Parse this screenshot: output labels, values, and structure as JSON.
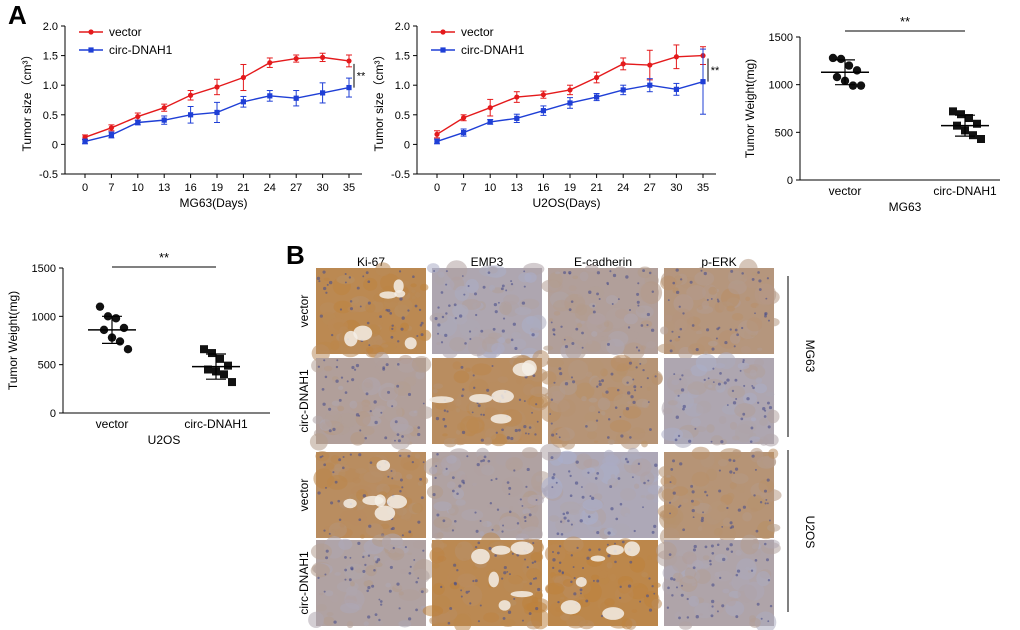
{
  "panel_labels": {
    "a": "A",
    "b": "B"
  },
  "colors": {
    "vector": "#e41a1c",
    "circ": "#1f3fd6",
    "dot": "#111111"
  },
  "chart_data": [
    {
      "id": "mg63_growth",
      "type": "line",
      "title": "",
      "xlabel": "MG63(Days)",
      "ylabel": "Tumor size（cm³）",
      "categories": [
        "0",
        "7",
        "10",
        "13",
        "16",
        "19",
        "21",
        "24",
        "27",
        "30",
        "35"
      ],
      "ylim": [
        -0.5,
        2.0
      ],
      "yticks": [
        "-0.5",
        "0",
        "0.5",
        "1.0",
        "1.5",
        "2.0"
      ],
      "legend_position": "top-left",
      "significance": "**",
      "series": [
        {
          "name": "vector",
          "color": "#e41a1c",
          "values": [
            0.12,
            0.28,
            0.47,
            0.62,
            0.83,
            0.97,
            1.13,
            1.38,
            1.45,
            1.47,
            1.41
          ],
          "errors": [
            0.04,
            0.05,
            0.06,
            0.06,
            0.08,
            0.13,
            0.22,
            0.08,
            0.06,
            0.07,
            0.1
          ]
        },
        {
          "name": "circ-DNAH1",
          "color": "#1f3fd6",
          "values": [
            0.05,
            0.16,
            0.37,
            0.41,
            0.5,
            0.54,
            0.72,
            0.82,
            0.78,
            0.87,
            0.96
          ],
          "errors": [
            0.04,
            0.05,
            0.04,
            0.07,
            0.14,
            0.17,
            0.09,
            0.09,
            0.13,
            0.17,
            0.16
          ]
        }
      ]
    },
    {
      "id": "u2os_growth",
      "type": "line",
      "title": "",
      "xlabel": "U2OS(Days)",
      "ylabel": "Tumor size（cm³）",
      "categories": [
        "0",
        "7",
        "10",
        "13",
        "16",
        "19",
        "21",
        "24",
        "27",
        "30",
        "35"
      ],
      "ylim": [
        -0.5,
        2.0
      ],
      "yticks": [
        "-0.5",
        "0",
        "0.5",
        "1.0",
        "1.5",
        "2.0"
      ],
      "legend_position": "top-left",
      "significance": "**",
      "series": [
        {
          "name": "vector",
          "color": "#e41a1c",
          "values": [
            0.17,
            0.45,
            0.62,
            0.8,
            0.84,
            0.92,
            1.13,
            1.36,
            1.34,
            1.48,
            1.5
          ],
          "errors": [
            0.06,
            0.05,
            0.14,
            0.09,
            0.06,
            0.08,
            0.09,
            0.1,
            0.25,
            0.2,
            0.15
          ]
        },
        {
          "name": "circ-DNAH1",
          "color": "#1f3fd6",
          "values": [
            0.05,
            0.2,
            0.38,
            0.44,
            0.57,
            0.7,
            0.8,
            0.92,
            1.0,
            0.93,
            1.06
          ],
          "errors": [
            0.04,
            0.06,
            0.04,
            0.07,
            0.08,
            0.09,
            0.06,
            0.08,
            0.11,
            0.1,
            0.55
          ]
        }
      ]
    },
    {
      "id": "mg63_weight",
      "type": "scatter",
      "title": "",
      "xlabel": "MG63",
      "ylabel": "Tumor  Weight(mg)",
      "categories": [
        "vector",
        "circ-DNAH1"
      ],
      "ylim": [
        0,
        1500
      ],
      "yticks": [
        "0",
        "500",
        "1000",
        "1500"
      ],
      "significance": "**",
      "groups": [
        {
          "name": "vector",
          "points": [
            1280,
            1270,
            1200,
            1150,
            1080,
            1040,
            990,
            990
          ],
          "mean": 1130,
          "sd": 130
        },
        {
          "name": "circ-DNAH1",
          "points": [
            720,
            690,
            650,
            590,
            570,
            520,
            470,
            430
          ],
          "mean": 570,
          "sd": 110
        }
      ]
    },
    {
      "id": "u2os_weight",
      "type": "scatter",
      "title": "",
      "xlabel": "U2OS",
      "ylabel": "Tumor  Weight(mg)",
      "categories": [
        "vector",
        "circ-DNAH1"
      ],
      "ylim": [
        0,
        1500
      ],
      "yticks": [
        "0",
        "500",
        "1000",
        "1500"
      ],
      "significance": "**",
      "groups": [
        {
          "name": "vector",
          "points": [
            1100,
            1000,
            980,
            880,
            860,
            780,
            740,
            660
          ],
          "mean": 860,
          "sd": 140
        },
        {
          "name": "circ-DNAH1",
          "points": [
            660,
            620,
            560,
            490,
            450,
            430,
            400,
            320
          ],
          "mean": 480,
          "sd": 130
        }
      ]
    }
  ],
  "ihc": {
    "columns": [
      "Ki-67",
      "EMP3",
      "E-cadherin",
      "p-ERK"
    ],
    "row_labels": [
      "vector",
      "circ-DNAH1",
      "vector",
      "circ-DNAH1"
    ],
    "group_labels": [
      "MG63",
      "U2OS"
    ],
    "stain_levels": [
      [
        0.85,
        0.2,
        0.35,
        0.55
      ],
      [
        0.35,
        0.75,
        0.6,
        0.2
      ],
      [
        0.75,
        0.3,
        0.15,
        0.6
      ],
      [
        0.3,
        0.85,
        0.9,
        0.25
      ]
    ]
  }
}
